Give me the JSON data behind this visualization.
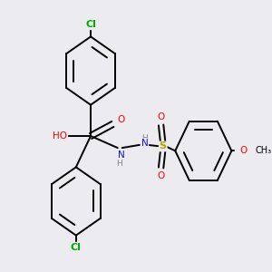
{
  "background_color": "#ebebf0",
  "atom_colors": {
    "C": "#000000",
    "H": "#808080",
    "O": "#ff0000",
    "N": "#1010dd",
    "S": "#b8a000",
    "Cl": "#00aa00"
  },
  "bond_color": "#000000",
  "bond_width": 1.4
}
